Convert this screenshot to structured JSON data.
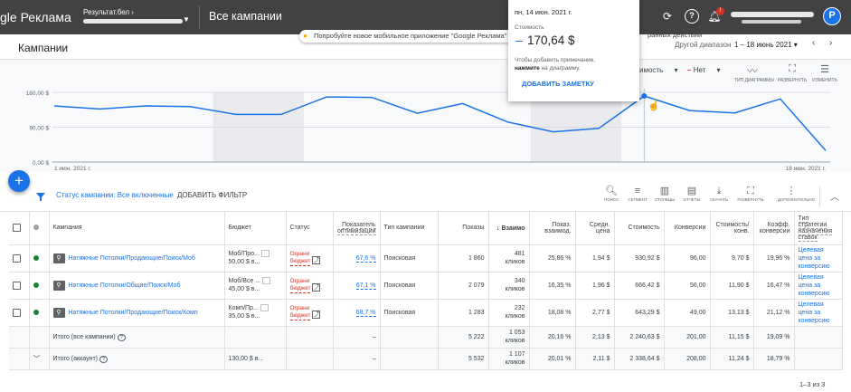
{
  "app": {
    "logo_text": "gle Реклама",
    "account_name": "Результат.бел",
    "page_title": "Все кампании",
    "icons": [
      "refresh-icon",
      "help-icon",
      "notifications-icon"
    ],
    "notifications_badge": "!",
    "avatar_letter": "P"
  },
  "header": {
    "title": "Кампании",
    "promo_text": "Попробуйте новое мобильное приложение \"Google Реклама\"",
    "promo_tail": "ранных действий",
    "range_label": "Другой диапазон",
    "date_range": "1 – 18 июнь 2021"
  },
  "chart_controls": {
    "metric1_suffix": "имость",
    "metric2": "Нет",
    "tools": [
      {
        "icon": "chart-type-icon",
        "label": "ТИП ДИАГРАММЫ"
      },
      {
        "icon": "expand-icon",
        "label": "РАЗВЕРНУТЬ"
      },
      {
        "icon": "tune-icon",
        "label": "ИЗМЕНИТЬ"
      }
    ]
  },
  "tooltip": {
    "date": "пн, 14 июн. 2021 г.",
    "metric": "Стоимость",
    "dash": "–",
    "value": "170,64 $",
    "note1": "Чтобы добавить примечание,",
    "note2_bold": "нажмите",
    "note2_rest": " на диаграмму.",
    "button": "ДОБАВИТЬ ЗАМЕТКУ"
  },
  "chart_data": {
    "type": "line",
    "title": "",
    "xlabel": "",
    "ylabel": "",
    "x": [
      "1 июн.",
      "2 июн.",
      "3 июн.",
      "4 июн.",
      "5 июн.",
      "6 июн.",
      "7 июн.",
      "8 июн.",
      "9 июн.",
      "10 июн.",
      "11 июн.",
      "12 июн.",
      "13 июн.",
      "14 июн.",
      "15 июн.",
      "16 июн.",
      "17 июн.",
      "18 июн."
    ],
    "series": [
      {
        "name": "Стоимость",
        "color": "#1a73e8",
        "values": [
          145,
          137,
          145,
          143,
          123,
          123,
          168,
          167,
          126,
          151,
          103,
          78,
          87,
          170.64,
          133,
          127,
          163,
          30
        ]
      }
    ],
    "ylim": [
      0,
      180
    ],
    "y_ticks": [
      "180,00 $",
      "90,00 $",
      "0,00 $"
    ],
    "x_tick_labels": [
      "1 июн. 2021 г.",
      "18 июн. 2021 г."
    ],
    "weekend_bands": [
      [
        4,
        5
      ],
      [
        11,
        12
      ]
    ],
    "highlight_index": 13,
    "grid": true
  },
  "filter": {
    "label": "Статус кампании: Все включенные",
    "add_button": "ДОБАВИТЬ ФИЛЬТР",
    "tools": [
      {
        "icon": "search-icon",
        "label": "ПОИСК"
      },
      {
        "icon": "segment-icon",
        "label": "СЕГМЕНТ"
      },
      {
        "icon": "columns-icon",
        "label": "СТОЛБЦЫ"
      },
      {
        "icon": "reports-icon",
        "label": "ОТЧЕТЫ"
      },
      {
        "icon": "download-icon",
        "label": "СКАЧАТЬ"
      },
      {
        "icon": "expand-icon",
        "label": "РАЗВЕРНУТЬ"
      },
      {
        "icon": "more-icon",
        "label": "ДОПОЛНИТЕЛЬНО"
      }
    ]
  },
  "table": {
    "headers": {
      "campaign": "Кампания",
      "budget": "Бюджет",
      "status": "Статус",
      "optim": "Показатель оптимизации",
      "type": "Тип кампании",
      "impr": "Показы",
      "interactions": "Взаимо",
      "ir": "Показ. взаимод.",
      "avg": "Средн. цена",
      "cost": "Стоимость",
      "conv": "Конверсии",
      "cpc": "Стоимость/ конв.",
      "cr": "Коэфф. конверсии",
      "bid": "Тип стратегии назначения ставок"
    },
    "rows": [
      {
        "name": "Натяжные Потолки/Продающие/Поиск/Моб",
        "budget": "Моб/Про...",
        "budget_value": "50,00 $ в...",
        "status": "Ограни",
        "status2": "бюджет",
        "optim": "67,6 %",
        "type": "Поисковая",
        "impr": "1 860",
        "inter": "481",
        "inter_unit": "кликов",
        "ir": "25,86 %",
        "avg": "1,94 $",
        "cost": "930,92 $",
        "conv": "96,00",
        "cpc": "9,70 $",
        "cr": "19,96 %",
        "bid": "Целевая цена за конверсию"
      },
      {
        "name": "Натяжные Потолки/Общие/Поиск/Моб",
        "budget": "Моб/Все ...",
        "budget_value": "45,00 $ в...",
        "status": "Ограни",
        "status2": "бюджет",
        "optim": "67,1 %",
        "type": "Поисковая",
        "impr": "2 079",
        "inter": "340",
        "inter_unit": "кликов",
        "ir": "16,35 %",
        "avg": "1,96 $",
        "cost": "666,42 $",
        "conv": "56,00",
        "cpc": "11,90 $",
        "cr": "16,47 %",
        "bid": "Целевая цена за конверсию"
      },
      {
        "name": "Натяжные Потолки/Продающие/Поиск/Комп",
        "budget": "Комп/Пр...",
        "budget_value": "35,00 $ в...",
        "status": "Ограни",
        "status2": "бюджет",
        "optim": "68,7 %",
        "type": "Поисковая",
        "impr": "1 283",
        "inter": "232",
        "inter_unit": "кликов",
        "ir": "18,08 %",
        "avg": "2,77 $",
        "cost": "643,29 $",
        "conv": "49,00",
        "cpc": "13,13 $",
        "cr": "21,12 %",
        "bid": "Целевая цена за конверсию"
      }
    ],
    "total_campaigns": {
      "label": "Итого (все кампании)",
      "optim": "–",
      "impr": "5 222",
      "inter": "1 053",
      "inter_unit": "кликов",
      "ir": "20,16 %",
      "avg": "2,13 $",
      "cost": "2 240,63 $",
      "conv": "201,00",
      "cpc": "11,15 $",
      "cr": "19,09 %"
    },
    "total_account": {
      "label": "Итого (аккаунт)",
      "budget": "130,00 $ в...",
      "optim": "–",
      "impr": "5 532",
      "inter": "1 107",
      "inter_unit": "кликов",
      "ir": "20,01 %",
      "avg": "2,11 $",
      "cost": "2 338,64 $",
      "conv": "208,00",
      "cpc": "11,24 $",
      "cr": "18,79 %"
    },
    "pagination": "1–3 из 3"
  }
}
